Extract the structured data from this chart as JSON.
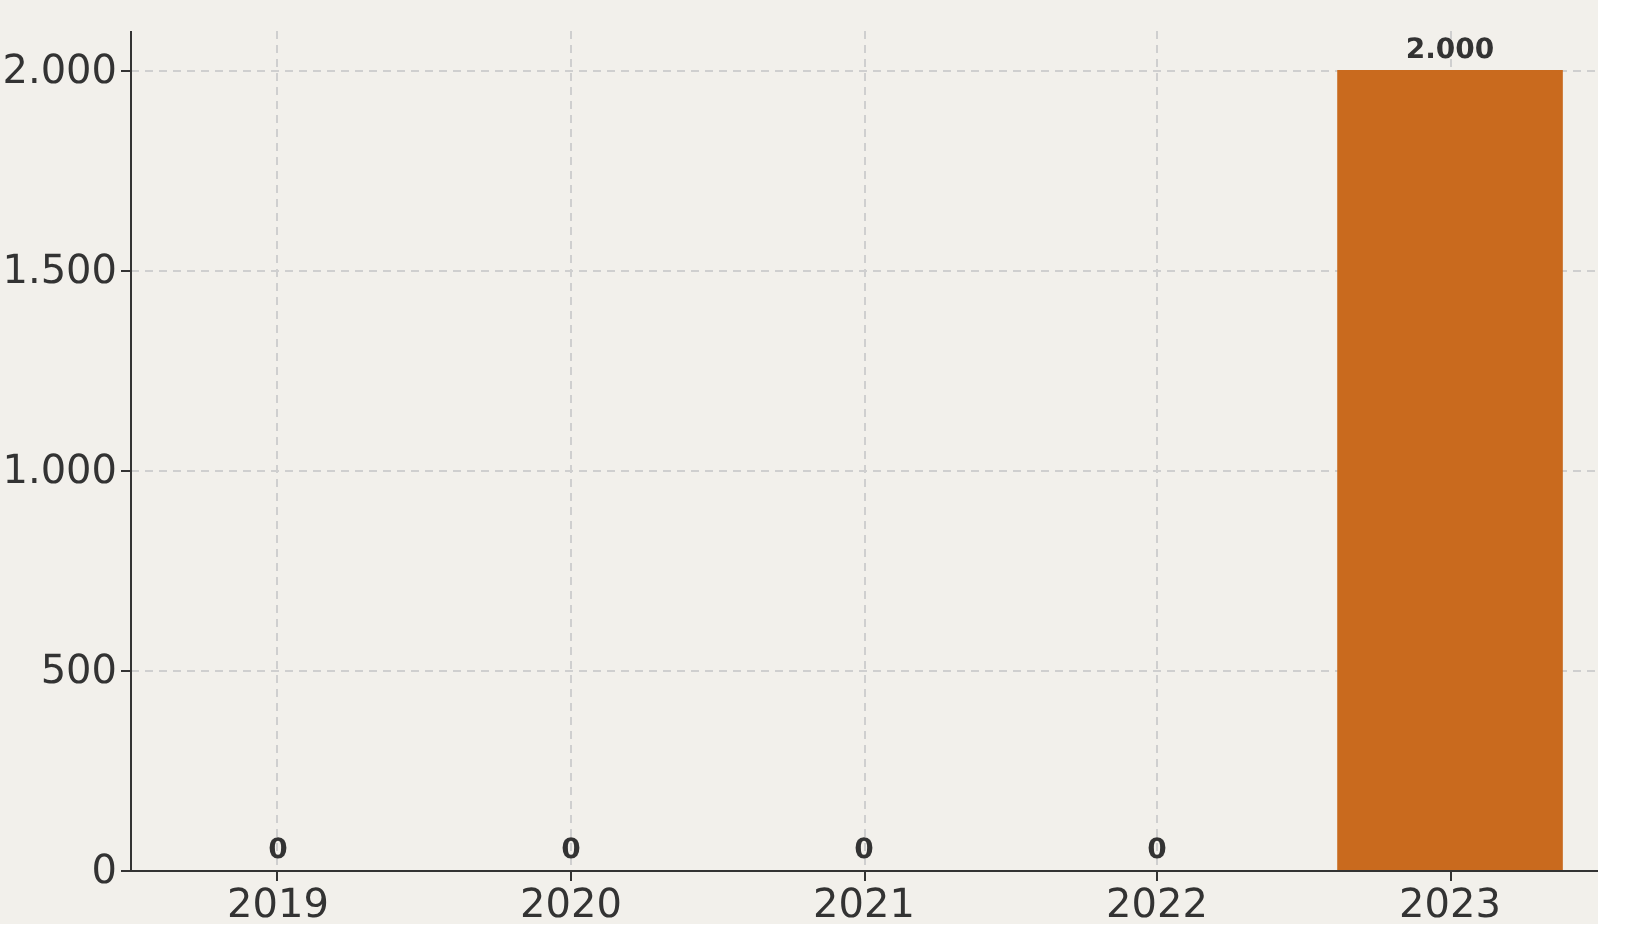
{
  "chart_data": {
    "type": "bar",
    "categories": [
      "2019",
      "2020",
      "2021",
      "2022",
      "2023"
    ],
    "values": [
      0,
      0,
      0,
      0,
      2000
    ],
    "color": "#c96a1e",
    "value_labels": [
      "0",
      "0",
      "0",
      "0",
      "2.000"
    ],
    "ylim": [
      0,
      2100
    ],
    "yticks": [
      {
        "value": 0,
        "label": "0"
      },
      {
        "value": 500,
        "label": "500"
      },
      {
        "value": 1000,
        "label": "1.000"
      },
      {
        "value": 1500,
        "label": "1.500"
      },
      {
        "value": 2000,
        "label": "2.000"
      }
    ],
    "grid": true
  }
}
